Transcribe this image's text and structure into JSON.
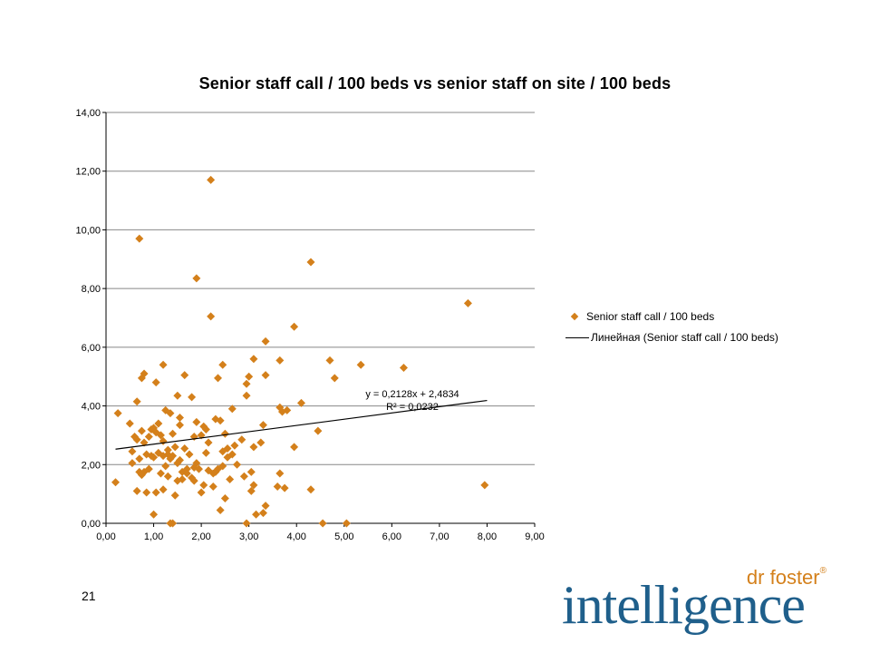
{
  "slide": {
    "page_number": "21"
  },
  "logo": {
    "small_text": "dr foster",
    "registered": "®",
    "big_text": "intelligence"
  },
  "colors": {
    "marker": "#d4801b",
    "trendline": "#000000",
    "grid": "#888888",
    "logo_blue": "#1f5f8b",
    "logo_orange": "#d4801b"
  },
  "chart_data": {
    "type": "scatter",
    "title": "Senior staff call / 100 beds vs senior staff on site / 100 beds",
    "xlabel": "",
    "ylabel": "",
    "xlim": [
      0,
      9
    ],
    "ylim": [
      0,
      14
    ],
    "x_ticks": [
      "0,00",
      "1,00",
      "2,00",
      "3,00",
      "4,00",
      "5,00",
      "6,00",
      "7,00",
      "8,00",
      "9,00"
    ],
    "y_ticks": [
      "0,00",
      "2,00",
      "4,00",
      "6,00",
      "8,00",
      "10,00",
      "12,00",
      "14,00"
    ],
    "grid": "horizontal",
    "legend_position": "right",
    "legend": [
      {
        "label": "Senior staff call / 100 beds",
        "kind": "marker"
      },
      {
        "label": "Линейная (Senior staff call / 100 beds)",
        "kind": "line"
      }
    ],
    "trendline": {
      "slope": 0.2128,
      "intercept": 2.4834,
      "x_range": [
        0.2,
        8.0
      ],
      "equation": "y = 0,2128x + 2,4834",
      "r2": "R² = 0,0232"
    },
    "series": [
      {
        "name": "Senior staff call / 100 beds",
        "x": [
          0.7,
          2.2,
          4.3,
          1.9,
          7.6,
          2.2,
          3.95,
          3.35,
          6.25,
          5.35,
          4.7,
          4.8,
          3.65,
          3.1,
          2.95,
          3.0,
          3.35,
          2.45,
          1.2,
          1.65,
          0.8,
          0.75,
          1.05,
          2.35,
          2.95,
          1.5,
          1.8,
          0.65,
          4.1,
          2.65,
          1.55,
          2.4,
          3.7,
          3.65,
          3.8,
          3.3,
          0.25,
          0.5,
          0.6,
          0.75,
          0.95,
          1.05,
          1.15,
          1.25,
          1.35,
          0.8,
          0.9,
          1.0,
          1.1,
          1.2,
          1.3,
          1.4,
          1.45,
          1.55,
          1.65,
          1.75,
          1.85,
          1.9,
          2.0,
          2.05,
          2.1,
          2.15,
          2.3,
          2.5,
          2.55,
          2.7,
          2.85,
          3.25,
          4.45,
          3.95,
          0.55,
          0.65,
          0.7,
          0.85,
          0.95,
          1.1,
          1.2,
          1.25,
          1.3,
          1.35,
          1.5,
          1.55,
          1.6,
          1.7,
          1.85,
          1.9,
          2.1,
          2.25,
          2.35,
          2.45,
          2.55,
          2.65,
          2.75,
          2.9,
          3.05,
          3.1,
          0.55,
          0.7,
          0.8,
          0.9,
          1.0,
          1.15,
          1.3,
          1.4,
          1.5,
          1.6,
          1.7,
          1.8,
          1.95,
          2.05,
          2.15,
          2.3,
          2.45,
          2.6,
          3.1,
          3.6,
          0.2,
          0.65,
          0.75,
          0.85,
          1.05,
          1.2,
          1.45,
          1.85,
          2.0,
          2.25,
          2.5,
          3.05,
          3.65,
          3.75,
          4.3,
          1.0,
          1.4,
          2.4,
          3.15,
          3.3,
          3.35,
          1.35,
          2.95,
          4.55,
          5.05,
          7.95
        ],
        "y": [
          9.7,
          11.7,
          8.9,
          8.35,
          7.5,
          7.05,
          6.7,
          6.2,
          5.3,
          5.4,
          5.55,
          4.95,
          5.55,
          5.6,
          4.75,
          5.0,
          5.05,
          5.4,
          5.4,
          5.05,
          5.1,
          4.95,
          4.8,
          4.95,
          4.35,
          4.35,
          4.3,
          4.15,
          4.1,
          3.9,
          3.6,
          3.5,
          3.8,
          3.95,
          3.85,
          3.35,
          3.75,
          3.4,
          2.95,
          3.15,
          3.2,
          3.1,
          3.0,
          3.85,
          3.75,
          2.75,
          2.95,
          3.25,
          3.4,
          2.8,
          2.5,
          3.05,
          2.6,
          3.35,
          2.55,
          2.35,
          2.95,
          3.45,
          3.0,
          3.3,
          3.2,
          2.75,
          3.55,
          3.05,
          2.55,
          2.65,
          2.85,
          2.75,
          3.15,
          2.6,
          2.45,
          2.85,
          2.2,
          2.35,
          2.3,
          2.4,
          2.3,
          1.95,
          2.35,
          2.2,
          2.05,
          2.15,
          1.75,
          1.85,
          1.9,
          2.05,
          2.4,
          1.7,
          1.85,
          2.45,
          2.25,
          2.35,
          2.0,
          1.6,
          1.75,
          2.6,
          2.05,
          1.75,
          1.75,
          1.85,
          2.25,
          1.7,
          1.6,
          2.3,
          1.45,
          1.5,
          1.7,
          1.55,
          1.85,
          1.3,
          1.8,
          1.75,
          1.95,
          1.5,
          1.3,
          1.25,
          1.4,
          1.1,
          1.65,
          1.05,
          1.05,
          1.15,
          0.95,
          1.45,
          1.05,
          1.25,
          0.85,
          1.1,
          1.7,
          1.2,
          1.15,
          0.3,
          0.0,
          0.45,
          0.3,
          0.35,
          0.6,
          0.0,
          0.0,
          0.0,
          0.0,
          1.3
        ]
      }
    ]
  }
}
